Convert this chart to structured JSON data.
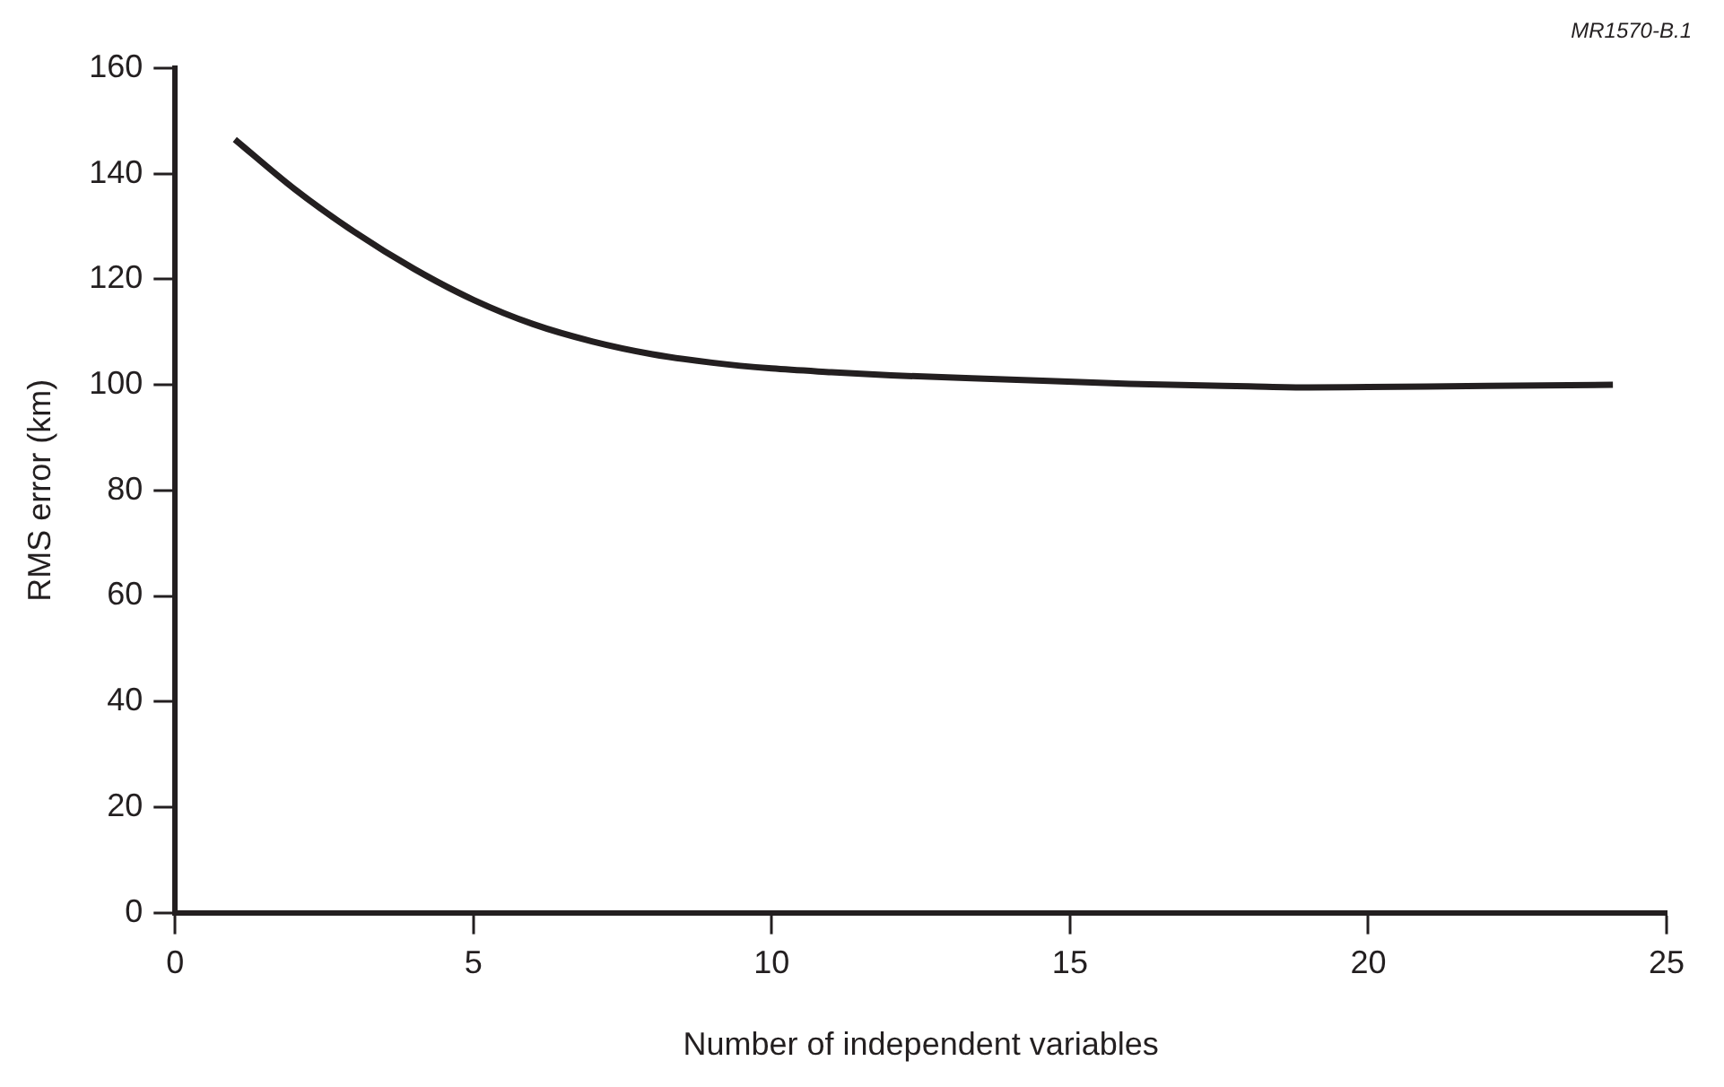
{
  "chart_data": {
    "type": "line",
    "xlabel": "Number of independent variables",
    "ylabel": "RMS error (km)",
    "annotations": [
      "MR1570-B.1"
    ],
    "series": [
      {
        "color": "#231f20",
        "x": [
          1,
          2,
          3,
          4,
          5,
          6,
          7,
          8,
          9,
          10,
          11,
          12,
          14,
          16,
          18,
          19,
          20,
          22,
          24.1
        ],
        "values": [
          146.5,
          137.1,
          129,
          122,
          116.1,
          111.5,
          108.2,
          105.8,
          104.2,
          103.1,
          102.4,
          101.8,
          101,
          100.2,
          99.7,
          99.5,
          99.6,
          99.8,
          100
        ]
      }
    ],
    "xlim": [
      0,
      25
    ],
    "xticks": [
      0,
      5,
      10,
      15,
      20,
      25
    ],
    "ylim": [
      0,
      160
    ],
    "yticks": [
      0,
      20,
      40,
      60,
      80,
      100,
      120,
      140,
      160
    ],
    "grid": false,
    "legend": false,
    "marker": "none",
    "line_style": "solid"
  }
}
